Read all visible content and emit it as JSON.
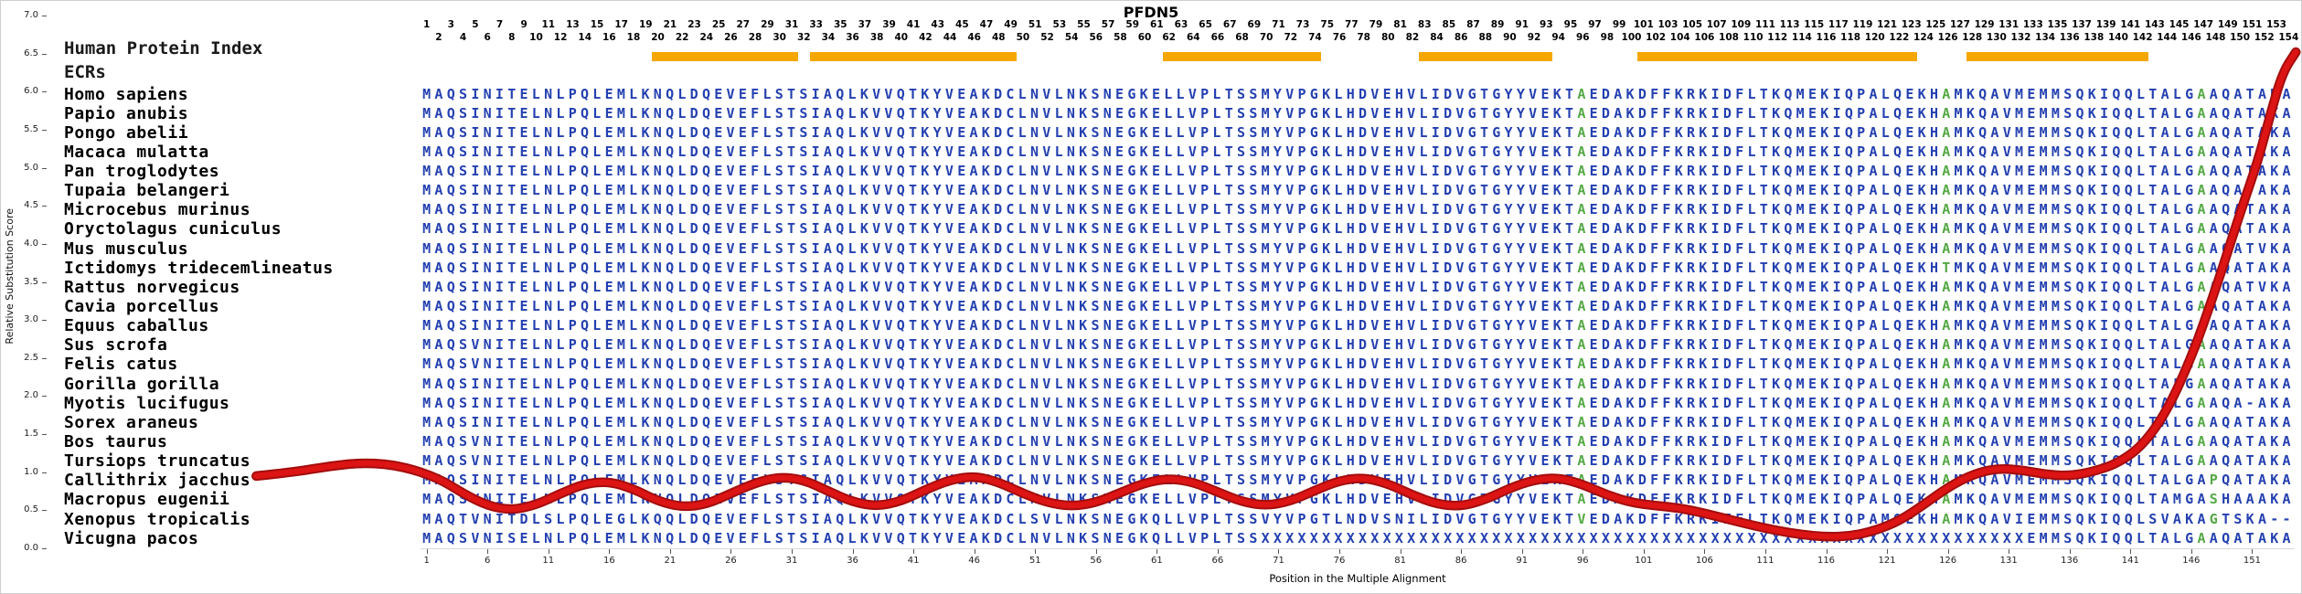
{
  "header": {
    "index_label": "Human Protein Index",
    "ecrs_label": "ECRs"
  },
  "colors": {
    "sequence_blue": "#2440B0",
    "conserved_green": "#55A845",
    "ecr_orange": "#F5A700",
    "curve_red": "#DD1414",
    "curve_dark": "#A30D0D"
  },
  "alignment": {
    "num_positions": 154,
    "ecr_regions": [
      [
        20,
        31
      ],
      [
        33,
        49
      ],
      [
        62,
        74
      ],
      [
        83,
        93
      ],
      [
        101,
        123
      ],
      [
        128,
        142
      ]
    ],
    "species": [
      {
        "name": "Homo sapiens",
        "green": [
          96,
          126,
          147
        ],
        "seq": "MAQSINITELNLPQLEMLKNQLDQEVEFLSTSIAQLKVVQTKYVEAKDCLNVLNKSNEGKELLVPLTSSMYVPGKLHDVEHVLIDVGTGYYVEKTAEDAKDFFKRKIDFLTKQMEKIQPALQEKHAMKQAVMEMMSQKIQQLTALGAAQATAKA"
      },
      {
        "name": "Papio anubis",
        "green": [
          96,
          126,
          147
        ],
        "seq": "MAQSINITELNLPQLEMLKNQLDQEVEFLSTSIAQLKVVQTKYVEAKDCLNVLNKSNEGKELLVPLTSSMYVPGKLHDVEHVLIDVGTGYYVEKTAEDAKDFFKRKIDFLTKQMEKIQPALQEKHAMKQAVMEMMSQKIQQLTALGAAQATAKA"
      },
      {
        "name": "Pongo abelii",
        "green": [
          96,
          126,
          147
        ],
        "seq": "MAQSINITELNLPQLEMLKNQLDQEVEFLSTSIAQLKVVQTKYVEAKDCLNVLNKSNEGKELLVPLTSSMYVPGKLHDVEHVLIDVGTGYYVEKTAEDAKDFFKRKIDFLTKQMEKIQPALQEKHAMKQAVMEMMSQKIQQLTALGAAQATAKA"
      },
      {
        "name": "Macaca mulatta",
        "green": [
          96,
          126,
          147
        ],
        "seq": "MAQSINITELNLPQLEMLKNQLDQEVEFLSTSIAQLKVVQTKYVEAKDCLNVLNKSNEGKELLVPLTSSMYVPGKLHDVEHVLIDVGTGYYVEKTAEDAKDFFKRKIDFLTKQMEKIQPALQEKHAMKQAVMEMMSQKIQQLTALGAAQATAKA"
      },
      {
        "name": "Pan troglodytes",
        "green": [
          96,
          126,
          147
        ],
        "seq": "MAQSINITELNLPQLEMLKNQLDQEVEFLSTSIAQLKVVQTKYVEAKDCLNVLNKSNEGKELLVPLTSSMYVPGKLHDVEHVLIDVGTGYYVEKTAEDAKDFFKRKIDFLTKQMEKIQPALQEKHAMKQAVMEMMSQKIQQLTALGAAQATAKA"
      },
      {
        "name": "Tupaia belangeri",
        "green": [
          96,
          126,
          147
        ],
        "seq": "MAQSINITELNLPQLEMLKNQLDQEVEFLSTSIAQLKVVQTKYVEAKDCLNVLNKSNEGKELLVPLTSSMYVPGKLHDVEHVLIDVGTGYYVEKTAEDAKDFFKRKIDFLTKQMEKIQPALQEKHAMKQAVMEMMSQKIQQLTALGAAQATAKA"
      },
      {
        "name": "Microcebus murinus",
        "green": [
          96,
          126,
          147
        ],
        "seq": "MAQSINITELNLPQLEMLKNQLDQEVEFLSTSIAQLKVVQTKYVEAKDCLNVLNKSNEGKELLVPLTSSMYVPGKLHDVEHVLIDVGTGYYVEKTAEDAKDFFKRKIDFLTKQMEKIQPALQEKHAMKQAVMEMMSQKIQQLTALGAAQATAKA"
      },
      {
        "name": "Oryctolagus cuniculus",
        "green": [
          96,
          126,
          147
        ],
        "seq": "MAQSINITELNLPQLEMLKNQLDQEVEFLSTSIAQLKVVQTKYVEAKDCLNVLNKSNEGKELLVPLTSSMYVPGKLHDVEHVLIDVGTGYYVEKTAEDAKDFFKRKIDFLTKQMEKIQPALQEKHAMKQAVMEMMSQKIQQLTALGAAQATAKA"
      },
      {
        "name": "Mus musculus",
        "green": [
          96,
          126,
          147
        ],
        "seq": "MAQSINITELNLPQLEMLKNQLDQEVEFLSTSIAQLKVVQTKYVEAKDCLNVLNKSNEGKELLVPLTSSMYVPGKLHDVEHVLIDVGTGYYVEKTAEDAKDFFKRKIDFLTKQMEKIQPALQEKHAMKQAVMEMMSQKIQQLTALGAAQATVKA"
      },
      {
        "name": "Ictidomys tridecemlineatus",
        "green": [
          96,
          126,
          147
        ],
        "seq": "MAQSINITELNLPQLEMLKNQLDQEVEFLSTSIAQLKVVQTKYVEAKDCLNVLNKSNEGKELLVPLTSSMYVPGKLHDVEHVLIDVGTGYYVEKTAEDAKDFFKRKIDFLTKQMEKIQPALQEKHTMKQAVMEMMSQKIQQLTALGAAQATAKA"
      },
      {
        "name": "Rattus norvegicus",
        "green": [
          96,
          126,
          147
        ],
        "seq": "MAQSINITELNLPQLEMLKNQLDQEVEFLSTSIAQLKVVQTKYVEAKDCLNVLNKSNEGKELLVPLTSSMYVPGKLHDVEHVLIDVGTGYYVEKTAEDAKDFFKRKIDFLTKQMEKIQPALQEKHAMKQAVMEMMSQKIQQLTALGAAQATVKA"
      },
      {
        "name": "Cavia porcellus",
        "green": [
          96,
          126,
          147
        ],
        "seq": "MAQSINITELNLPQLEMLKNQLDQEVEFLSTSIAQLKVVQTKYVEAKDCLNVLNKSNEGKELLVPLTSSMYVPGKLHDVEHVLIDVGTGYYVEKTAEDAKDFFKRKIDFLTKQMEKIQPALQEKHAMKQAVMEMMSQKIQQLTALGAAQATAKA"
      },
      {
        "name": "Equus caballus",
        "green": [
          96,
          126,
          147
        ],
        "seq": "MAQSINITELNLPQLEMLKNQLDQEVEFLSTSIAQLKVVQTKYVEAKDCLNVLNKSNEGKELLVPLTSSMYVPGKLHDVEHVLIDVGTGYYVEKTAEDAKDFFKRKIDFLTKQMEKIQPALQEKHAMKQAVMEMMSQKIQQLTALGAAQATAKA"
      },
      {
        "name": "Sus scrofa",
        "green": [
          96,
          126,
          147
        ],
        "seq": "MAQSVNITELNLPQLEMLKNQLDQEVEFLSTSIAQLKVVQTKYVEAKDCLNVLNKSNEGKELLVPLTSSMYVPGKLHDVEHVLIDVGTGYYVEKTAEDAKDFFKRKIDFLTKQMEKIQPALQEKHAMKQAVMEMMSQKIQQLTALGAAQATAKA"
      },
      {
        "name": "Felis catus",
        "green": [
          96,
          126,
          147
        ],
        "seq": "MAQSVNITELNLPQLEMLKNQLDQEVEFLSTSIAQLKVVQTKYVEAKDCLNVLNKSNEGKELLVPLTSSMYVPGKLHDVEHVLIDVGTGYYVEKTAEDAKDFFKRKIDFLTKQMEKIQPALQEKHAMKQAVMEMMSQKIQQLTALGAAQATAKA"
      },
      {
        "name": "Gorilla gorilla",
        "green": [
          96,
          126,
          147
        ],
        "seq": "MAQSINITELNLPQLEMLKNQLDQEVEFLSTSIAQLKVVQTKYVEAKDCLNVLNKSNEGKELLVPLTSSMYVPGKLHDVEHVLIDVGTGYYVEKTAEDAKDFFKRKIDFLTKQMEKIQPALQEKHAMKQAVMEMMSQKIQQLTALGAAQATAKA"
      },
      {
        "name": "Myotis lucifugus",
        "green": [
          96,
          126,
          147
        ],
        "seq": "MAQSINITELNLPQLEMLKNQLDQEVEFLSTSIAQLKVVQTKYVEAKDCLNVLNKSNEGKELLVPLTSSMYVPGKLHDVEHVLIDVGTGYYVEKTAEDAKDFFKRKIDFLTKQMEKIQPALQEKHAMKQAVMEMMSQKIQQLTALGAAQA-AKA"
      },
      {
        "name": "Sorex araneus",
        "green": [
          96,
          126,
          147
        ],
        "seq": "MAQSINITELNLPQLEMLKNQLDQEVEFLSTSIAQLKVVQTKYVEAKDCLNVLNKSNEGKELLVPLTSSMYVPGKLHDVEHVLIDVGTGYYVEKTAEDAKDFFKRKIDFLTKQMEKIQPALQEKHAMKQAVMEMMSQKIQQLTALGAAQATAKA"
      },
      {
        "name": "Bos taurus",
        "green": [
          96,
          126,
          147
        ],
        "seq": "MAQSVNITELNLPQLEMLKNQLDQEVEFLSTSIAQLKVVQTKYVEAKDCLNVLNKSNEGKELLVPLTSSMYVPGKLHDVEHVLIDVGTGYYVEKTAEDAKDFFKRKIDFLTKQMEKIQPALQEKHAMKQAVMEMMSQKIQQLTALGAAQATAKA"
      },
      {
        "name": "Tursiops truncatus",
        "green": [
          96,
          126,
          147
        ],
        "seq": "MAQSVNITELNLPQLEMLKNQLDQEVEFLSTSIAQLKVVQTKYVEAKDCLNVLNKSNEGKELLVPLTSSMYVPGKLHDVEHVLIDVGTGYYVEKTAEDAKDFFKRKIDFLTKQMEKIQPALQEKHAMKQAVMEMMSQKIQQLTALGAAQATAKA"
      },
      {
        "name": "Callithrix jacchus",
        "green": [
          96,
          126,
          148
        ],
        "seq": "MAQSINITELNLPQLEMLKNQLDQEVEFLSTSIAQLKVVQTKYVEAKDCLNVLNKSNEGKELLVPLTSSMYVPGKLHDVEHVLIDVGTGYYVEKTAEDAKDFFKRKIDFLTKQMEKIQPALQEKHAMKQAVMEMMSQKIQQLTALGAPQATAKA"
      },
      {
        "name": "Macropus eugenii",
        "green": [
          96,
          126,
          148
        ],
        "seq": "MAQSVNITELNLPQLEMLKNQLDQEVEFLSTSIAQLKVVQTKYVEAKDCLNVLNKSNEGKELLVPLTSSMYVPGKLHDVEHVLIDVGTGYYVEKTAEDAKDFFKRKIDFLTKQMEKIQPALQEKHAMKQAVMEMMSQKIQQLTAMGASHAAAKA"
      },
      {
        "name": "Xenopus tropicalis",
        "green": [
          96,
          126,
          148
        ],
        "seq": "MAQTVNITDLSLPQLEGLKQQLDQEVEFLSTSIAQLKVVQTKYVEAKDCLSVLNKSNEGKQLLVPLTSSVYVPGTLNDVSNILIDVGTGYYVEKTVEDAKDFFKRKIEFLTKQMEKIQPAMQEKHAMKQAVIEMMSQKIQQLSVAKAGTSKA--"
      },
      {
        "name": "Vicugna pacos",
        "green": [
          147
        ],
        "seq": "MAQSVNISELNLPQLEMLKNQLDQEVEFLSTSIAQLKVVQTKYVEAKDCLNVLNKSNEGKQLLVPLTSSXXXXXXXXXXXXXXXXXXXXXXXXXXXXXXXXXXXXXXXXXXXXXXXXXXXXXXXXXXXXXXXEMMSQKIQQLTALGAAQATAKA"
      }
    ]
  },
  "chart_data": {
    "type": "line",
    "title": "PFDN5",
    "xlabel": "Position in the Multiple Alignment",
    "ylabel": "Relative Substitution Score",
    "ylim": [
      0,
      7
    ],
    "xlim_positions": [
      1,
      154
    ],
    "grid": false,
    "legend": "none",
    "y_ticks": [
      "7.0",
      "6.5",
      "6.0",
      "5.5",
      "5.0",
      "4.5",
      "4.0",
      "3.5",
      "3.0",
      "2.5",
      "2.0",
      "1.5",
      "1.0",
      "0.5",
      "0.0"
    ],
    "x_ticks": [
      1,
      6,
      11,
      16,
      21,
      26,
      31,
      36,
      41,
      46,
      51,
      56,
      61,
      66,
      71,
      76,
      81,
      86,
      91,
      96,
      101,
      106,
      111,
      116,
      121,
      126,
      131,
      136,
      141,
      146,
      151
    ],
    "series": [
      {
        "name": "relative-substitution-score",
        "x_unit": "alignment_position",
        "points": [
          [
            -13,
            0.95
          ],
          [
            -10,
            1.0
          ],
          [
            -7,
            1.08
          ],
          [
            -4,
            1.13
          ],
          [
            -1,
            1.08
          ],
          [
            2,
            0.92
          ],
          [
            4,
            0.72
          ],
          [
            6,
            0.56
          ],
          [
            8,
            0.5
          ],
          [
            10,
            0.57
          ],
          [
            12,
            0.72
          ],
          [
            14,
            0.85
          ],
          [
            16,
            0.88
          ],
          [
            18,
            0.78
          ],
          [
            20,
            0.62
          ],
          [
            22,
            0.54
          ],
          [
            24,
            0.58
          ],
          [
            26,
            0.72
          ],
          [
            28,
            0.86
          ],
          [
            30,
            0.94
          ],
          [
            32,
            0.9
          ],
          [
            34,
            0.75
          ],
          [
            36,
            0.61
          ],
          [
            38,
            0.55
          ],
          [
            40,
            0.62
          ],
          [
            42,
            0.77
          ],
          [
            44,
            0.9
          ],
          [
            46,
            0.95
          ],
          [
            48,
            0.87
          ],
          [
            50,
            0.72
          ],
          [
            52,
            0.6
          ],
          [
            54,
            0.55
          ],
          [
            56,
            0.6
          ],
          [
            58,
            0.73
          ],
          [
            60,
            0.86
          ],
          [
            62,
            0.92
          ],
          [
            64,
            0.87
          ],
          [
            66,
            0.74
          ],
          [
            68,
            0.61
          ],
          [
            70,
            0.56
          ],
          [
            72,
            0.62
          ],
          [
            74,
            0.76
          ],
          [
            76,
            0.89
          ],
          [
            78,
            0.93
          ],
          [
            80,
            0.85
          ],
          [
            82,
            0.7
          ],
          [
            84,
            0.58
          ],
          [
            86,
            0.55
          ],
          [
            88,
            0.64
          ],
          [
            90,
            0.79
          ],
          [
            92,
            0.9
          ],
          [
            94,
            0.93
          ],
          [
            96,
            0.84
          ],
          [
            98,
            0.7
          ],
          [
            100,
            0.6
          ],
          [
            102,
            0.56
          ],
          [
            104,
            0.53
          ],
          [
            106,
            0.46
          ],
          [
            108,
            0.38
          ],
          [
            110,
            0.3
          ],
          [
            112,
            0.23
          ],
          [
            114,
            0.18
          ],
          [
            116,
            0.15
          ],
          [
            118,
            0.16
          ],
          [
            120,
            0.23
          ],
          [
            122,
            0.36
          ],
          [
            124,
            0.57
          ],
          [
            126,
            0.8
          ],
          [
            128,
            0.97
          ],
          [
            130,
            1.05
          ],
          [
            132,
            1.03
          ],
          [
            134,
            0.97
          ],
          [
            136,
            0.95
          ],
          [
            138,
            1.01
          ],
          [
            140,
            1.12
          ],
          [
            142,
            1.35
          ],
          [
            144,
            1.8
          ],
          [
            146,
            2.5
          ],
          [
            148,
            3.4
          ],
          [
            150,
            4.4
          ],
          [
            151.5,
            5.1
          ],
          [
            152.5,
            5.7
          ],
          [
            153.5,
            6.25
          ],
          [
            154.6,
            6.52
          ]
        ]
      }
    ]
  }
}
